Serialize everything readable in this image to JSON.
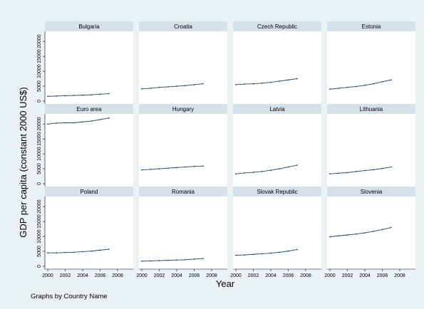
{
  "chart_data": {
    "type": "line",
    "layout": "small-multiples",
    "ylabel": "GDP per capita (constant 2000 US$)",
    "xlabel": "Year",
    "note": "Graphs by Country Name",
    "x_ticks": [
      2000,
      2002,
      2004,
      2006,
      2008
    ],
    "xlim": [
      2000,
      2008
    ],
    "y_ticks": [
      0,
      5000,
      10000,
      15000,
      20000
    ],
    "ylim": [
      0,
      21000
    ],
    "grid": false,
    "x": [
      2000,
      2001,
      2002,
      2003,
      2004,
      2005,
      2006,
      2007
    ],
    "panels": [
      {
        "name": "Bulgaria",
        "values": [
          1600,
          1700,
          1800,
          1900,
          2000,
          2100,
          2300,
          2500
        ]
      },
      {
        "name": "Croatia",
        "values": [
          4100,
          4300,
          4600,
          4800,
          5000,
          5200,
          5500,
          5800
        ]
      },
      {
        "name": "Czech Republic",
        "values": [
          5500,
          5700,
          5800,
          6000,
          6300,
          6700,
          7100,
          7500
        ]
      },
      {
        "name": "Estonia",
        "values": [
          4000,
          4300,
          4600,
          4900,
          5300,
          5800,
          6500,
          7100
        ]
      },
      {
        "name": "Euro area",
        "values": [
          20000,
          20300,
          20400,
          20400,
          20700,
          21000,
          21500,
          22000
        ]
      },
      {
        "name": "Hungary",
        "values": [
          4600,
          4800,
          5000,
          5200,
          5400,
          5600,
          5800,
          5900
        ]
      },
      {
        "name": "Latvia",
        "values": [
          3300,
          3600,
          3800,
          4100,
          4500,
          5000,
          5600,
          6200
        ]
      },
      {
        "name": "Lithuania",
        "values": [
          3300,
          3500,
          3700,
          4100,
          4400,
          4700,
          5100,
          5600
        ]
      },
      {
        "name": "Poland",
        "values": [
          4500,
          4500,
          4600,
          4700,
          4900,
          5100,
          5400,
          5700
        ]
      },
      {
        "name": "Romania",
        "values": [
          1700,
          1800,
          1900,
          2000,
          2100,
          2200,
          2400,
          2600
        ]
      },
      {
        "name": "Slovak Republic",
        "values": [
          3700,
          3800,
          4000,
          4200,
          4400,
          4700,
          5100,
          5600
        ]
      },
      {
        "name": "Slovenia",
        "values": [
          9900,
          10200,
          10500,
          10800,
          11200,
          11700,
          12300,
          13000
        ]
      }
    ]
  }
}
